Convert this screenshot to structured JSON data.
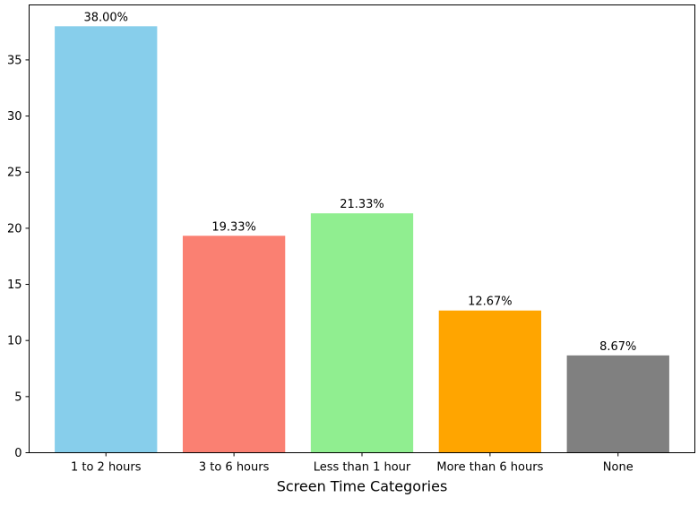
{
  "chart_data": {
    "type": "bar",
    "title": "",
    "xlabel": "Screen Time Categories",
    "ylabel": "",
    "categories": [
      "1 to 2 hours",
      "3 to 6 hours",
      "Less than 1 hour",
      "More than 6 hours",
      "None"
    ],
    "values": [
      38.0,
      19.33,
      21.33,
      12.67,
      8.67
    ],
    "data_labels": [
      "38.00%",
      "19.33%",
      "21.33%",
      "12.67%",
      "8.67%"
    ],
    "colors": [
      "#87ceeb",
      "#fa8072",
      "#90ee90",
      "#ffa500",
      "#808080"
    ],
    "y_ticks": [
      0,
      5,
      10,
      15,
      20,
      25,
      30,
      35
    ],
    "ylim": [
      0,
      39.9
    ],
    "grid": false,
    "legend": "none"
  }
}
